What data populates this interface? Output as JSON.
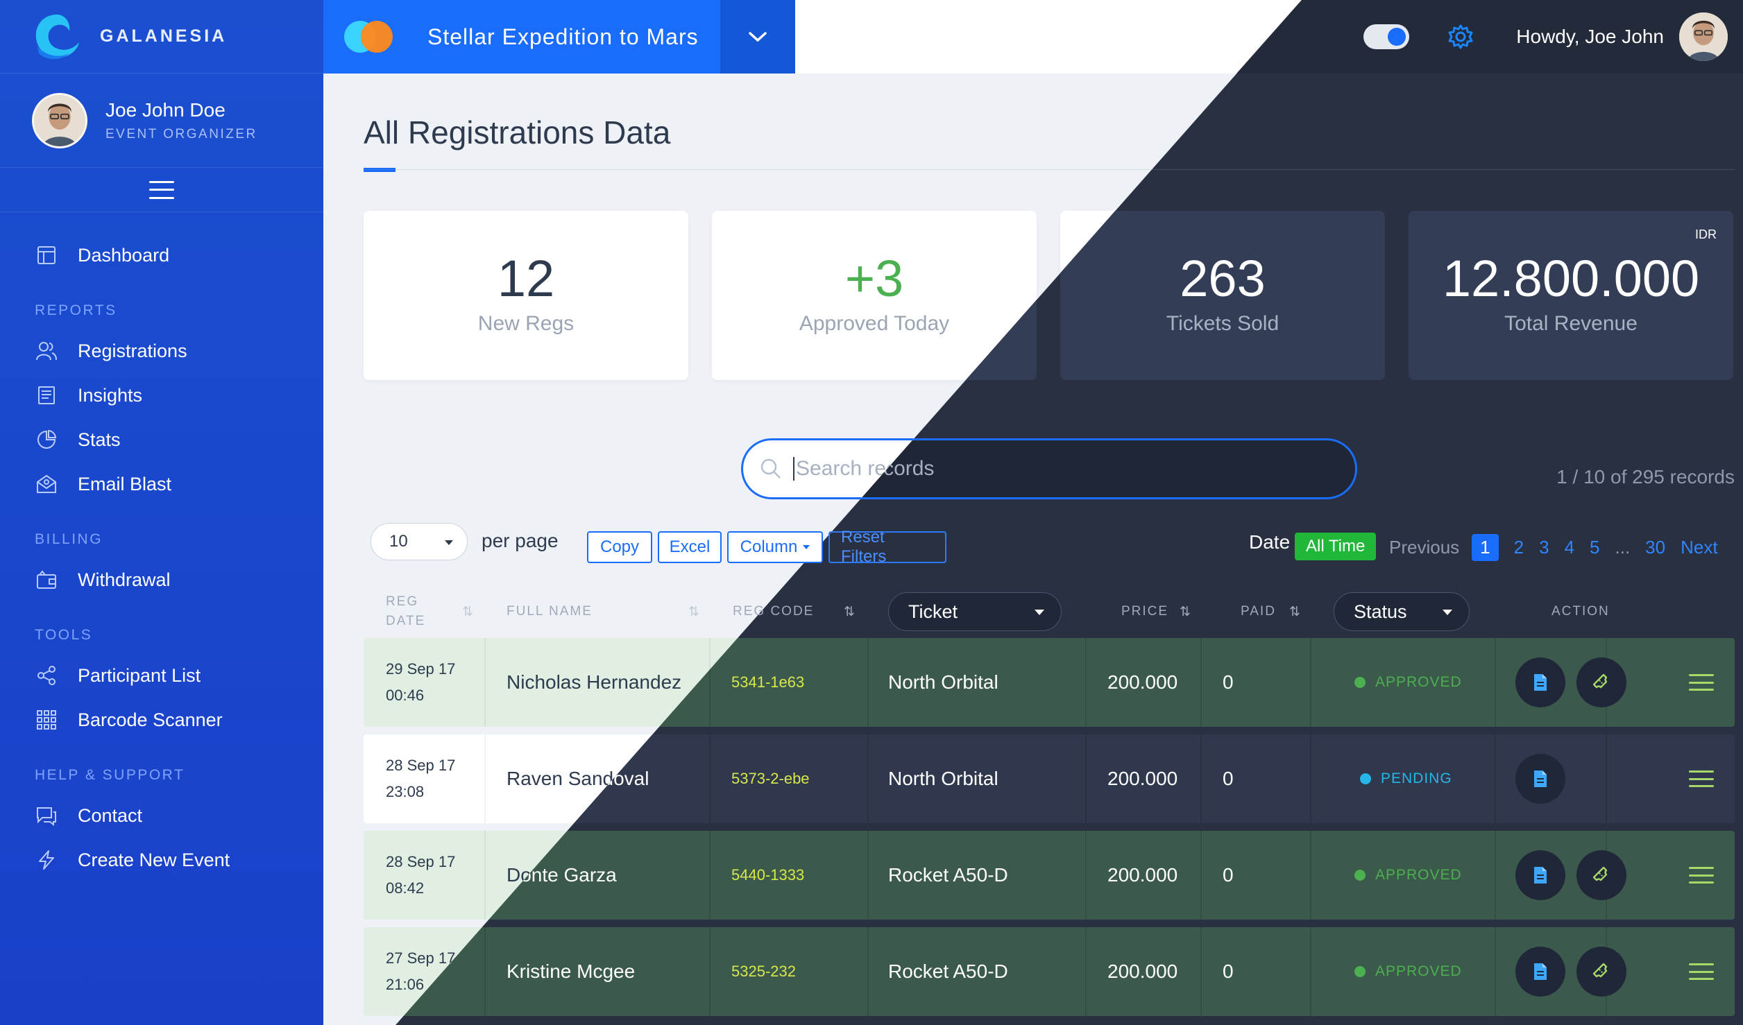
{
  "brand": {
    "name": "GALANESIA"
  },
  "profile": {
    "name": "Joe John Doe",
    "role": "EVENT ORGANIZER"
  },
  "sidebar": {
    "dashboard": "Dashboard",
    "sections": {
      "reports": "REPORTS",
      "billing": "BILLING",
      "tools": "TOOLS",
      "help": "HELP & SUPPORT"
    },
    "items": {
      "registrations": "Registrations",
      "insights": "Insights",
      "stats": "Stats",
      "email_blast": "Email Blast",
      "withdrawal": "Withdrawal",
      "participant_list": "Participant List",
      "barcode_scanner": "Barcode Scanner",
      "contact": "Contact",
      "create_event": "Create New Event"
    }
  },
  "topbar": {
    "event_name": "Stellar Expedition to Mars",
    "greeting": "Howdy, Joe John",
    "accent": "#1a6dfa"
  },
  "page": {
    "title": "All Registrations Data"
  },
  "stats": {
    "new_regs": {
      "value": "12",
      "label": "New Regs"
    },
    "approved_today": {
      "value": "+3",
      "label": "Approved Today"
    },
    "tickets_sold": {
      "value": "263",
      "label": "Tickets Sold"
    },
    "total_revenue": {
      "value": "12.800.000",
      "label": "Total Revenue",
      "currency": "IDR"
    }
  },
  "search": {
    "placeholder": "Search records"
  },
  "records_count": "1 / 10 of 295 records",
  "controls": {
    "per_page_value": "10",
    "per_page_label": "per page",
    "copy": "Copy",
    "excel": "Excel",
    "column": "Column",
    "reset_filters": "Reset Filters",
    "date_label": "Date",
    "date_filter": "All Time"
  },
  "pagination": {
    "previous": "Previous",
    "pages": [
      "1",
      "2",
      "3",
      "4",
      "5"
    ],
    "ellipsis": "...",
    "last": "30",
    "next": "Next",
    "current": "1"
  },
  "table": {
    "headers": {
      "reg_date_1": "REG",
      "reg_date_2": "DATE",
      "full_name": "FULL NAME",
      "reg_code": "REG CODE",
      "ticket": "Ticket",
      "price": "PRICE",
      "paid": "PAID",
      "status": "Status",
      "action": "ACTION"
    },
    "rows": [
      {
        "date": "29 Sep 17",
        "time": "00:46",
        "name": "Nicholas Hernandez",
        "code": "5341-1e63",
        "ticket": "North Orbital",
        "price": "200.000",
        "paid": "0",
        "status": "APPROVED"
      },
      {
        "date": "28 Sep 17",
        "time": "23:08",
        "name": "Raven Sandoval",
        "code": "5373-2-ebe",
        "ticket": "North Orbital",
        "price": "200.000",
        "paid": "0",
        "status": "PENDING"
      },
      {
        "date": "28 Sep 17",
        "time": "08:42",
        "name": "Donte Garza",
        "code": "5440-1333",
        "ticket": "Rocket A50-D",
        "price": "200.000",
        "paid": "0",
        "status": "APPROVED"
      },
      {
        "date": "27 Sep 17",
        "time": "21:06",
        "name": "Kristine Mcgee",
        "code": "5325-232",
        "ticket": "Rocket A50-D",
        "price": "200.000",
        "paid": "0",
        "status": "APPROVED"
      }
    ]
  },
  "colors": {
    "sidebar": "#1b4fd0",
    "dark_bg": "#283042",
    "approved": "#4caf50",
    "pending": "#26b6e8",
    "code": "#d8e84a"
  }
}
